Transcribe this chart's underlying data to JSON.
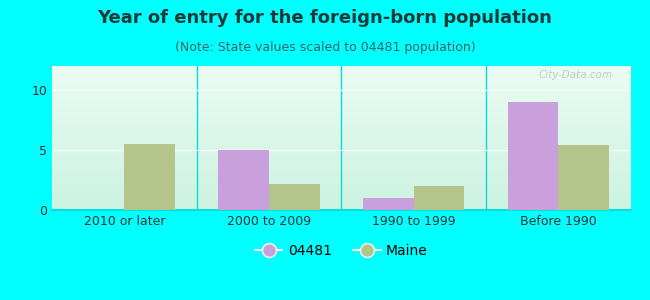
{
  "title": "Year of entry for the foreign-born population",
  "subtitle": "(Note: State values scaled to 04481 population)",
  "categories": [
    "2010 or later",
    "2000 to 2009",
    "1990 to 1999",
    "Before 1990"
  ],
  "values_04481": [
    0,
    5,
    1,
    9
  ],
  "values_maine": [
    5.5,
    2.2,
    2.0,
    5.4
  ],
  "color_04481": "#c9a0dc",
  "color_maine": "#b5c48a",
  "background_color": "#00ffff",
  "ylim": [
    0,
    12
  ],
  "yticks": [
    0,
    5,
    10
  ],
  "bar_width": 0.35,
  "legend_04481": "04481",
  "legend_maine": "Maine",
  "title_fontsize": 13,
  "subtitle_fontsize": 9,
  "title_color": "#1a3a3a",
  "subtitle_color": "#336666",
  "watermark": "City-Data.com",
  "tick_fontsize": 9
}
